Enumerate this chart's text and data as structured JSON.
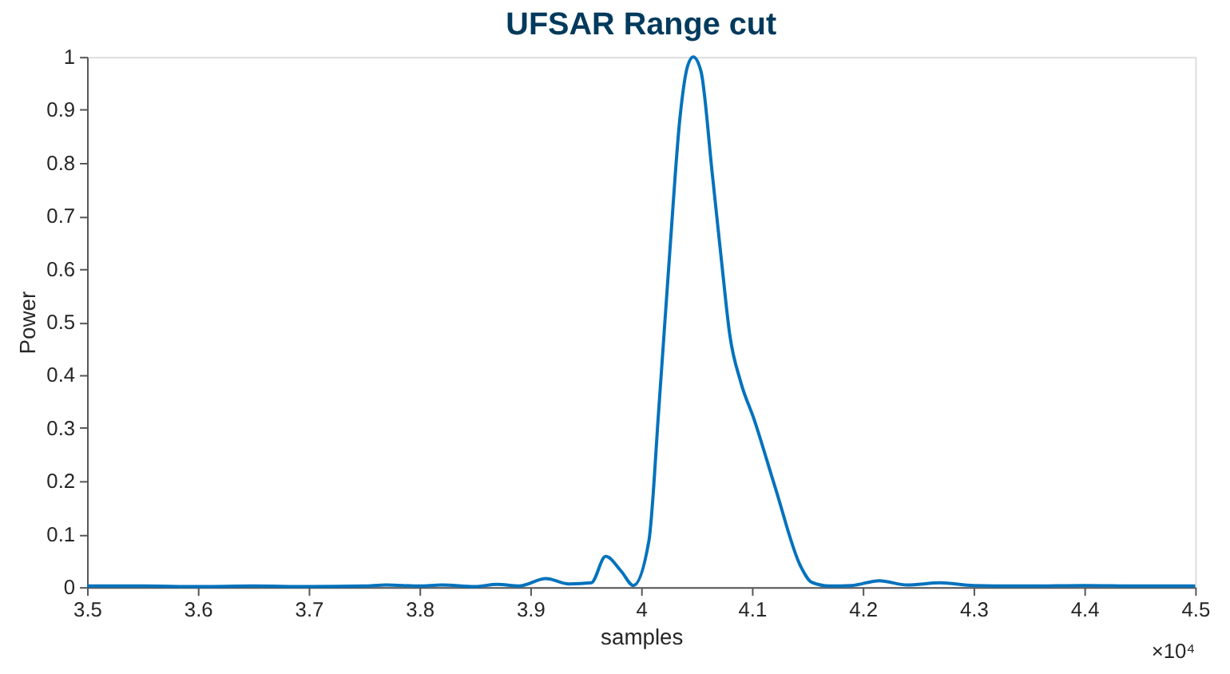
{
  "chart_data": {
    "type": "line",
    "title": "UFSAR Range cut",
    "xlabel": "samples",
    "ylabel": "Power",
    "annotations": [
      "×10⁴"
    ],
    "series": [
      {
        "color": "#0072bd",
        "x": [
          3.5,
          3.55,
          3.6,
          3.65,
          3.7,
          3.75,
          3.77,
          3.8,
          3.82,
          3.85,
          3.87,
          3.89,
          3.914,
          3.935,
          3.955,
          3.968,
          3.982,
          3.993,
          4.007,
          4.016,
          4.026,
          4.035,
          4.042,
          4.047,
          4.054,
          4.064,
          4.073,
          4.08,
          4.09,
          4.102,
          4.121,
          4.144,
          4.154,
          4.17,
          4.19,
          4.215,
          4.24,
          4.27,
          4.3,
          4.35,
          4.4,
          4.45,
          4.5
        ],
        "values": [
          0.002,
          0.002,
          0.001,
          0.002,
          0.001,
          0.002,
          0.004,
          0.002,
          0.004,
          0.001,
          0.005,
          0.002,
          0.016,
          0.006,
          0.008,
          0.058,
          0.03,
          0.003,
          0.087,
          0.337,
          0.636,
          0.884,
          0.983,
          1.0,
          0.973,
          0.784,
          0.606,
          0.476,
          0.386,
          0.316,
          0.188,
          0.039,
          0.009,
          0.002,
          0.003,
          0.012,
          0.004,
          0.008,
          0.003,
          0.002,
          0.003,
          0.002,
          0.002
        ]
      }
    ],
    "xlim": [
      3.5,
      4.5
    ],
    "xticks": [
      3.5,
      3.6,
      3.7,
      3.8,
      3.9,
      4,
      4.1,
      4.2,
      4.3,
      4.4,
      4.5
    ],
    "ylim": [
      0,
      1
    ],
    "yticks": [
      0,
      0.1,
      0.2,
      0.3,
      0.4,
      0.5,
      0.6,
      0.7,
      0.8,
      0.9,
      1
    ],
    "grid": false,
    "marker": "none",
    "line_style": "solid"
  }
}
